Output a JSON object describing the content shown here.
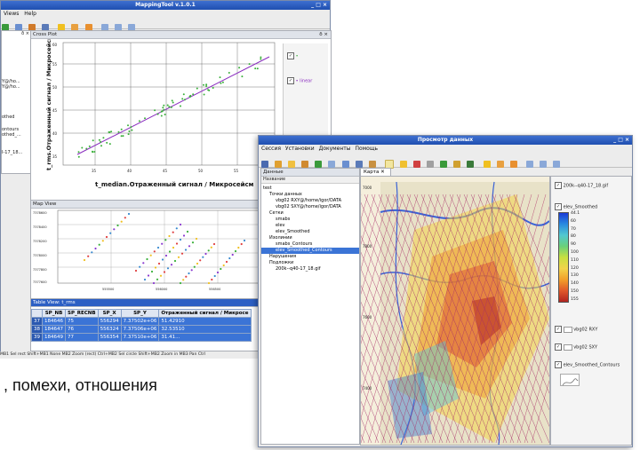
{
  "mt": {
    "title": "MappingTool v.1.0.1",
    "menu": [
      "Views",
      "Help"
    ],
    "left_dock_close": "ð ×",
    "left_items": [
      "Y@/ho...",
      "Y@/ho...",
      "othed",
      "ontours",
      "othed_...",
      "I-17_18..."
    ],
    "cross_plot": {
      "title": "Cross Plot",
      "ylabel": "t_rms.Отраженный сигнал / Микросейсм",
      "xlabel": "t_median.Отраженный сигнал / Микросейсм",
      "legend_items": [
        "•",
        "• linear"
      ],
      "y_ticks": [
        "60",
        "55",
        "50",
        "45",
        "40",
        "35"
      ],
      "x_ticks": [
        "35",
        "40",
        "45",
        "50",
        "55"
      ]
    },
    "map_view": {
      "title": "Map View",
      "y_ticks": [
        "7378600",
        "7378400",
        "7378200",
        "7378000",
        "7377800",
        "7377600"
      ],
      "x_ticks": [
        "555500",
        "556000",
        "556500",
        "557000"
      ]
    },
    "table": {
      "title": "Table View: t_rms",
      "headers": [
        "",
        "SP_NB",
        "SP_RECNB",
        "SP_X",
        "SP_Y",
        "Отраженный сигнал / Микросе"
      ],
      "rows": [
        [
          "37",
          "184646",
          "75",
          "556294",
          "7.37502e+06",
          "51.42910"
        ],
        [
          "38",
          "184647",
          "76",
          "556324",
          "7.37506e+06",
          "32.53510"
        ],
        [
          "39",
          "184649",
          "77",
          "556354",
          "7.37510e+06",
          "31.41..."
        ]
      ]
    },
    "status": "MB1 Sel rect Shift+MB1 None MB2 Zoom (rect) Ctrl+MB2 Sel circle Shift+MB2 Zoom in MB3 Pan Ctrl"
  },
  "caption": ", помехи, отношения",
  "pd": {
    "title": "Просмотр данных",
    "menu": [
      "Сессия",
      "Установки",
      "Документы",
      "Помощь"
    ],
    "data_title": "Данные",
    "tab": "Карта",
    "tree_header": "Название",
    "tree": [
      {
        "text": "test",
        "indent": 0
      },
      {
        "text": "Точки данных",
        "indent": 1
      },
      {
        "text": "vbg02 RXY@/home/igor/DATA",
        "indent": 2
      },
      {
        "text": "vbg02 SXY@/home/igor/DATA",
        "indent": 2
      },
      {
        "text": "Сетки",
        "indent": 1
      },
      {
        "text": "smabs",
        "indent": 2
      },
      {
        "text": "elev",
        "indent": 2
      },
      {
        "text": "elev_Smoothed",
        "indent": 2
      },
      {
        "text": "Изолинии",
        "indent": 1
      },
      {
        "text": "smabs_Contours",
        "indent": 2
      },
      {
        "text": "elev_Smoothed_Contours",
        "indent": 2,
        "selected": true
      },
      {
        "text": "Нарушения",
        "indent": 1
      },
      {
        "text": "Подложки",
        "indent": 1
      },
      {
        "text": "200k--q40-17_18.gif",
        "indent": 2
      }
    ],
    "layers": [
      {
        "label": "200k--q40-17_18.gif"
      },
      {
        "label": "elev_Smoothed"
      },
      {
        "label": "vbg02 RXY"
      },
      {
        "label": "vbg02 SXY"
      },
      {
        "label": "elev_Smoothed_Contours"
      }
    ],
    "colorbar": [
      "44.1",
      "60",
      "70",
      "80",
      "90",
      "100",
      "110",
      "120",
      "130",
      "140",
      "150",
      "155"
    ],
    "colors": {
      "accent": "#2c5fc4",
      "selected": "#3b74d6"
    }
  }
}
